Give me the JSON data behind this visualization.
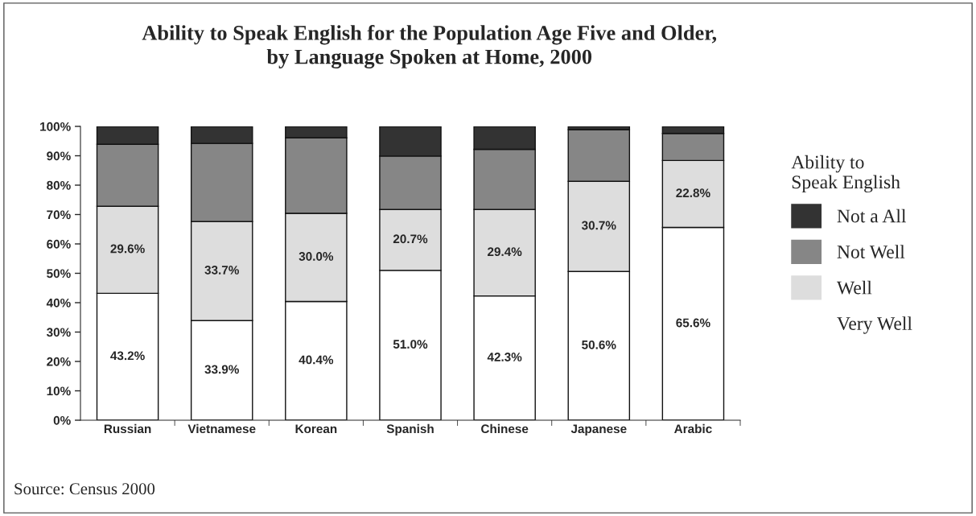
{
  "chart_data": {
    "type": "bar",
    "stacked": true,
    "title": "Ability to Speak English for the Population Age Five and Older,\nby Language Spoken at Home, 2000",
    "categories": [
      "Russian",
      "Vietnamese",
      "Korean",
      "Spanish",
      "Chinese",
      "Japanese",
      "Arabic"
    ],
    "series": [
      {
        "name": "Very Well",
        "color": "#ffffff",
        "values": [
          43.2,
          33.9,
          40.4,
          51.0,
          42.3,
          50.6,
          65.6
        ],
        "value_labels": [
          "43.2%",
          "33.9%",
          "40.4%",
          "51.0%",
          "42.3%",
          "50.6%",
          "65.6%"
        ]
      },
      {
        "name": "Well",
        "color": "#dddddd",
        "values": [
          29.6,
          33.7,
          30.0,
          20.7,
          29.4,
          30.7,
          22.8
        ],
        "value_labels": [
          "29.6%",
          "33.7%",
          "30.0%",
          "20.7%",
          "29.4%",
          "30.7%",
          "22.8%"
        ]
      },
      {
        "name": "Not Well",
        "color": "#868686",
        "values": [
          21.1,
          26.6,
          25.7,
          18.2,
          20.5,
          17.6,
          9.2
        ]
      },
      {
        "name": "Not a All",
        "color": "#333333",
        "values": [
          6.1,
          5.8,
          3.9,
          10.1,
          7.8,
          1.1,
          2.4
        ]
      }
    ],
    "ylim": [
      0,
      100
    ],
    "yticks": [
      {
        "value": 0,
        "label": "0%"
      },
      {
        "value": 10,
        "label": "10%"
      },
      {
        "value": 20,
        "label": "20%"
      },
      {
        "value": 30,
        "label": "30%"
      },
      {
        "value": 40,
        "label": "40%"
      },
      {
        "value": 50,
        "label": "50%"
      },
      {
        "value": 60,
        "label": "60%"
      },
      {
        "value": 70,
        "label": "70%"
      },
      {
        "value": 80,
        "label": "80%"
      },
      {
        "value": 90,
        "label": "90%"
      },
      {
        "value": 100,
        "label": "100%"
      }
    ],
    "legend": "right",
    "legend_title": "Ability to\nSpeak English",
    "grid": false,
    "annotations": [
      "Source: Census 2000"
    ]
  }
}
